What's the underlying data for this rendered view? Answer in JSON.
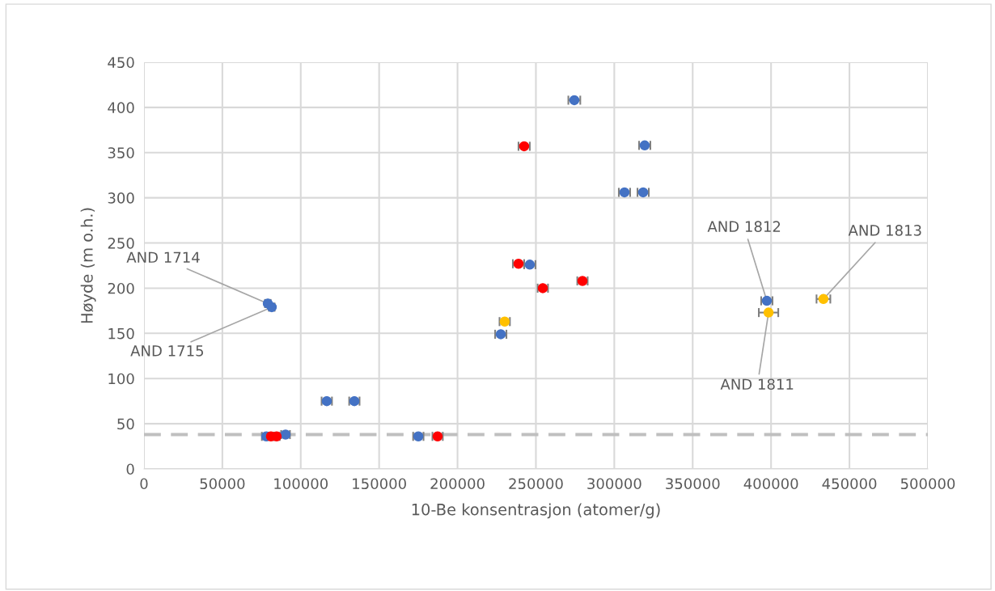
{
  "chart_data": {
    "type": "scatter",
    "xlabel": "10-Be konsentrasjon (atomer/g)",
    "ylabel": "Høyde (m o.h.)",
    "xlim": [
      0,
      500000
    ],
    "xticks": [
      0,
      50000,
      100000,
      150000,
      200000,
      250000,
      300000,
      350000,
      400000,
      450000,
      500000
    ],
    "ylim": [
      0,
      450
    ],
    "yticks": [
      0,
      50,
      100,
      150,
      200,
      250,
      300,
      350,
      400,
      450
    ],
    "grid": true,
    "legend": false,
    "marker": "circle",
    "series": [
      {
        "color": "#4472c4",
        "x": [
          274500,
          319400,
          306500,
          318400,
          246100,
          227600,
          397300,
          79000,
          81500,
          116600,
          134200,
          78000,
          90300,
          175000
        ],
        "values": [
          408,
          358,
          306,
          306,
          226,
          149,
          186,
          183,
          179,
          75,
          75,
          36,
          38,
          36
        ],
        "xerrors": [
          3800,
          3600,
          3600,
          3600,
          3600,
          3600,
          3600,
          1800,
          1800,
          3300,
          3300,
          2800,
          2800,
          3300
        ]
      },
      {
        "color": "#ff0000",
        "x": [
          242500,
          238900,
          279700,
          254400,
          81000,
          84600,
          187300
        ],
        "values": [
          357,
          227,
          208,
          200,
          36,
          36,
          36
        ],
        "xerrors": [
          3600,
          3600,
          3300,
          3300,
          2000,
          2000,
          3300
        ]
      },
      {
        "color": "#ffc000",
        "x": [
          230100,
          398400,
          433400
        ],
        "values": [
          163,
          173,
          188
        ],
        "xerrors": [
          3300,
          6200,
          4400
        ]
      }
    ],
    "ref_lines": [
      {
        "axis": "y",
        "value": 38,
        "color": "#bfbfbf",
        "line_style": "dashed"
      }
    ],
    "annotations": [
      {
        "text": "AND 1714",
        "x": 79000,
        "y": 183
      },
      {
        "text": "AND 1715",
        "x": 81500,
        "y": 179
      },
      {
        "text": "AND 1812",
        "x": 397300,
        "y": 186
      },
      {
        "text": "AND 1811",
        "x": 398400,
        "y": 173
      },
      {
        "text": "AND 1813",
        "x": 433400,
        "y": 188
      }
    ]
  }
}
